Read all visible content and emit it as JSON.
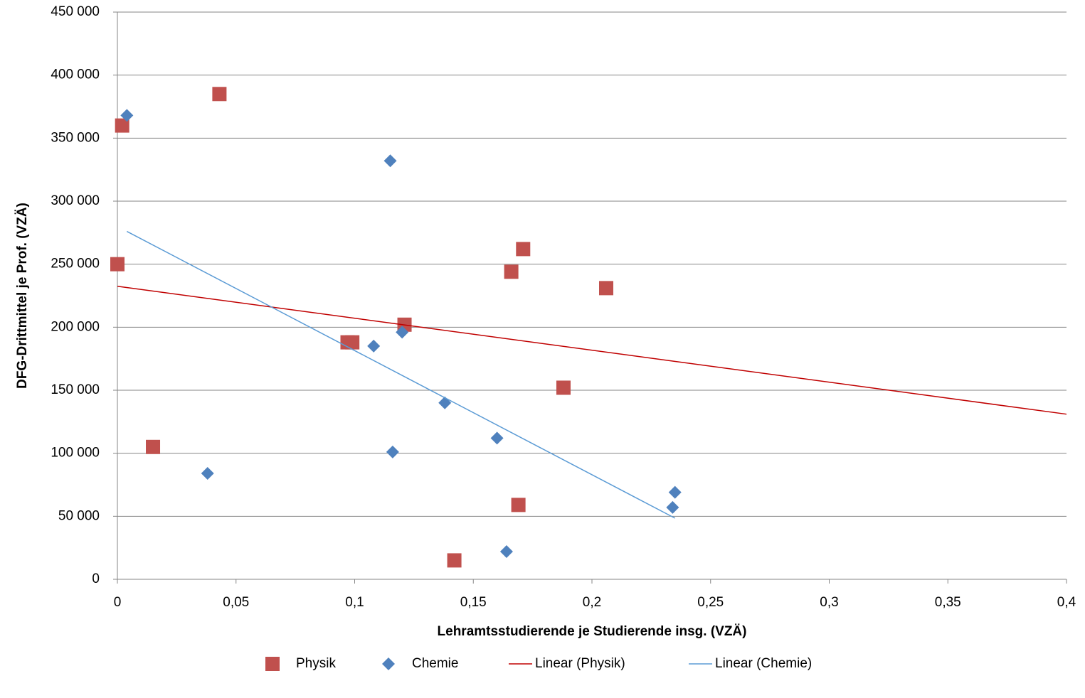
{
  "chart_data": {
    "type": "scatter",
    "x_label": "Lehramtsstudierende je Studierende insg. (VZÄ)",
    "y_label": "DFG-Drittmittel je Prof. (VZÄ)",
    "xlim": [
      0,
      0.4
    ],
    "ylim": [
      0,
      450000
    ],
    "xticks": [
      0,
      {
        "value": 0.05,
        "label": "0,05"
      },
      {
        "value": 0.1,
        "label": "0,1"
      },
      {
        "value": 0.15,
        "label": "0,15"
      },
      {
        "value": 0.2,
        "label": "0,2"
      },
      {
        "value": 0.25,
        "label": "0,25"
      },
      {
        "value": 0.3,
        "label": "0,3"
      },
      {
        "value": 0.35,
        "label": "0,35"
      },
      {
        "value": 0.4,
        "label": "0,4"
      }
    ],
    "yticks": [
      0,
      {
        "value": 50000,
        "label": "50 000"
      },
      {
        "value": 100000,
        "label": "100 000"
      },
      {
        "value": 150000,
        "label": "150 000"
      },
      {
        "value": 200000,
        "label": "200 000"
      },
      {
        "value": 250000,
        "label": "250 000"
      },
      {
        "value": 300000,
        "label": "300 000"
      },
      {
        "value": 350000,
        "label": "350 000"
      },
      {
        "value": 400000,
        "label": "400 000"
      },
      {
        "value": 450000,
        "label": "450 000"
      }
    ],
    "grid": true,
    "legend": "bottom",
    "series": [
      {
        "name": "Physik",
        "color": "#c0504d",
        "marker": "square",
        "x": [
          0,
          0.002,
          0.043,
          0.015,
          0.097,
          0.099,
          0.121,
          0.166,
          0.171,
          0.206,
          0.188,
          0.169,
          0.142
        ],
        "values": [
          250000,
          360000,
          385000,
          105000,
          188000,
          188000,
          202000,
          244000,
          262000,
          231000,
          152000,
          59000,
          15000
        ]
      },
      {
        "name": "Chemie",
        "color": "#4f81bd",
        "marker": "diamond",
        "x": [
          0.004,
          0.115,
          0.12,
          0.108,
          0.138,
          0.116,
          0.16,
          0.038,
          0.235,
          0.234,
          0.164
        ],
        "values": [
          368000,
          332000,
          196000,
          185000,
          140000,
          101000,
          112000,
          84000,
          69000,
          57000,
          22000
        ]
      },
      {
        "name": "Linear (Physik)",
        "color": "#c00000",
        "marker": "line",
        "x": [
          0,
          0.4
        ],
        "values": [
          232500,
          131000
        ]
      },
      {
        "name": "Linear (Chemie)",
        "color": "#5b9bd5",
        "marker": "line",
        "x": [
          0.004,
          0.235
        ],
        "values": [
          276000,
          48500
        ]
      }
    ]
  }
}
